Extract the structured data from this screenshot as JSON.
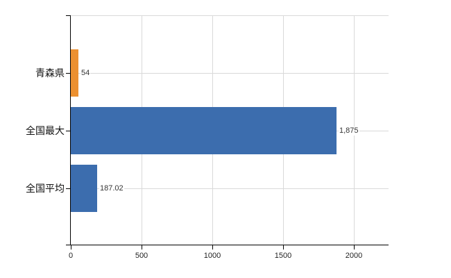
{
  "chart_data": {
    "type": "bar",
    "orientation": "horizontal",
    "title": "",
    "categories": [
      "青森県",
      "全国最大",
      "全国平均"
    ],
    "values": [
      54,
      1875,
      187.02
    ],
    "value_labels": [
      "54",
      "1,875",
      "187.02"
    ],
    "bar_colors": [
      "#EC9030",
      "#3C6DAE",
      "#3C6DAE"
    ],
    "x_ticks": [
      0,
      500,
      1000,
      1500,
      2000
    ],
    "x_tick_labels": [
      "0",
      "500",
      "1000",
      "1500",
      "2000"
    ],
    "xlim": [
      0,
      2240
    ],
    "grid": true,
    "legend": false,
    "colors": {
      "axis": "#000000",
      "grid": "#D9D9D9",
      "category_text": "#111111",
      "value_text": "#333333",
      "tick_text": "#222222",
      "background": "#FFFFFF"
    }
  }
}
